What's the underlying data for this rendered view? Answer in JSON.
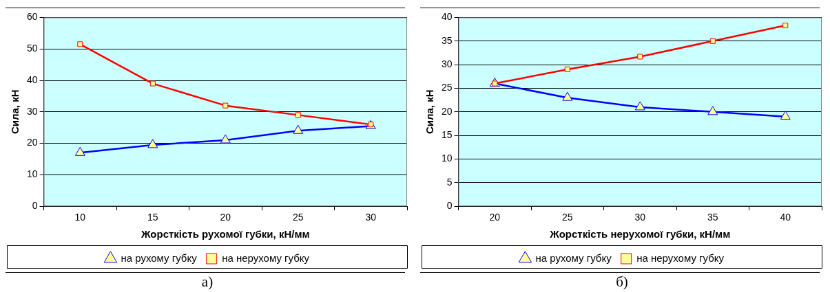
{
  "chart_data": [
    {
      "type": "line",
      "xlabel": "Жорсткість рухомої губки, кН/мм",
      "ylabel": "Сила, кН",
      "categories": [
        "10",
        "15",
        "20",
        "25",
        "30"
      ],
      "ylim": [
        0,
        60
      ],
      "yticks": [
        0,
        10,
        20,
        30,
        40,
        50,
        60
      ],
      "grid": "y",
      "legend": "bottom",
      "annotations": [
        "а)"
      ],
      "series": [
        {
          "name": "на рухому губку",
          "color": "#0000ff",
          "marker": "triangle",
          "values": [
            17,
            19.5,
            21,
            24,
            25.5
          ]
        },
        {
          "name": "на нерухому губку",
          "color": "#ff0000",
          "marker": "square",
          "values": [
            51.5,
            39,
            32,
            29,
            26
          ]
        }
      ]
    },
    {
      "type": "line",
      "xlabel": "Жорсткість нерухомої губки, кН/мм",
      "ylabel": "Сила, кН",
      "categories": [
        "20",
        "25",
        "30",
        "35",
        "40"
      ],
      "ylim": [
        0,
        40
      ],
      "yticks": [
        0,
        5,
        10,
        15,
        20,
        25,
        30,
        35,
        40
      ],
      "grid": "y",
      "legend": "bottom",
      "annotations": [
        "б)"
      ],
      "series": [
        {
          "name": "на рухому губку",
          "color": "#0000ff",
          "marker": "triangle",
          "values": [
            26,
            23,
            21,
            20,
            19
          ]
        },
        {
          "name": "на нерухому губку",
          "color": "#ff0000",
          "marker": "square",
          "values": [
            26,
            29,
            31.7,
            35,
            38.3
          ]
        }
      ]
    }
  ]
}
